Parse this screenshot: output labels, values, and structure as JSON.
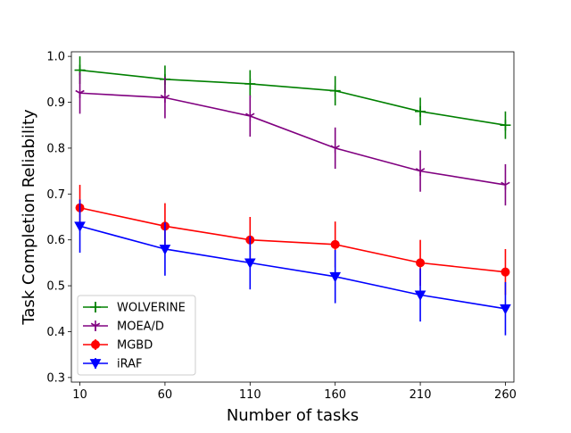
{
  "chart_data": {
    "type": "line",
    "xlabel": "Number of tasks",
    "ylabel": "Task Completion Reliability",
    "x": [
      10,
      60,
      110,
      160,
      210,
      260
    ],
    "xlim": [
      5,
      265
    ],
    "ylim": [
      0.29,
      1.01
    ],
    "yticks": [
      "0.3",
      "0.4",
      "0.5",
      "0.6",
      "0.7",
      "0.8",
      "0.9",
      "1.0"
    ],
    "xticks": [
      "10",
      "60",
      "110",
      "160",
      "210",
      "260"
    ],
    "legend_position": "lower-left",
    "series": [
      {
        "name": "WOLVERINE",
        "color": "#008000",
        "marker": "plus",
        "values": [
          0.97,
          0.95,
          0.94,
          0.925,
          0.88,
          0.85
        ],
        "errors": [
          0.03,
          0.03,
          0.03,
          0.032,
          0.03,
          0.03
        ]
      },
      {
        "name": "MOEA/D",
        "color": "#800080",
        "marker": "tri-down",
        "values": [
          0.92,
          0.91,
          0.87,
          0.8,
          0.75,
          0.72
        ],
        "errors": [
          0.045,
          0.045,
          0.045,
          0.045,
          0.045,
          0.045
        ]
      },
      {
        "name": "MGBD",
        "color": "#ff0000",
        "marker": "circle",
        "values": [
          0.67,
          0.63,
          0.6,
          0.59,
          0.55,
          0.53
        ],
        "errors": [
          0.05,
          0.05,
          0.05,
          0.05,
          0.05,
          0.05
        ]
      },
      {
        "name": "iRAF",
        "color": "#0000ff",
        "marker": "triangle-down",
        "values": [
          0.63,
          0.58,
          0.55,
          0.52,
          0.48,
          0.45
        ],
        "errors": [
          0.058,
          0.058,
          0.058,
          0.058,
          0.058,
          0.058
        ]
      }
    ]
  }
}
